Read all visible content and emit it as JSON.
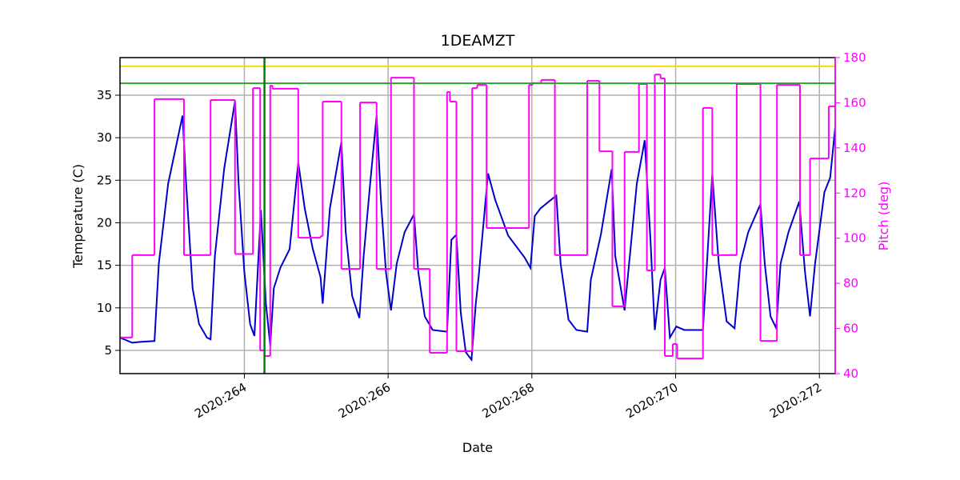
{
  "chart_data": {
    "type": "line",
    "title": "1DEAMZT",
    "x_label": "Date",
    "y_label": "Temperature (C)",
    "y2_label": "Pitch (deg)",
    "y2_color": "#ff00ff",
    "xlim": [
      262.27,
      272.22
    ],
    "xticks": [
      {
        "value": 264,
        "label": "2020:264"
      },
      {
        "value": 266,
        "label": "2020:266"
      },
      {
        "value": 268,
        "label": "2020:268"
      },
      {
        "value": 270,
        "label": "2020:270"
      },
      {
        "value": 272,
        "label": "2020:272"
      }
    ],
    "ylim": [
      2.27,
      39.42
    ],
    "yticks": [
      5,
      10,
      15,
      20,
      25,
      30,
      35
    ],
    "y2lim": [
      40,
      180
    ],
    "y2ticks": [
      40,
      60,
      80,
      100,
      120,
      140,
      160,
      180
    ],
    "grid": true,
    "hlines": [
      {
        "value": 38.4,
        "color": "#ffd700"
      },
      {
        "value": 36.4,
        "color": "#2ca02c"
      }
    ],
    "vlines": [
      {
        "value": 264.28,
        "color": "#008000"
      }
    ],
    "series": [
      {
        "color": "#0000cc",
        "x": [
          262.27,
          262.44,
          262.55,
          262.75,
          262.81,
          262.94,
          263.14,
          263.19,
          263.28,
          263.37,
          263.48,
          263.53,
          263.59,
          263.72,
          263.87,
          263.92,
          264.0,
          264.08,
          264.14,
          264.23,
          264.3,
          264.36,
          264.41,
          264.5,
          264.63,
          264.75,
          264.84,
          264.95,
          265.06,
          265.09,
          265.19,
          265.35,
          265.41,
          265.5,
          265.6,
          265.66,
          265.75,
          265.84,
          265.9,
          265.97,
          266.04,
          266.12,
          266.23,
          266.36,
          266.42,
          266.51,
          266.62,
          266.82,
          266.88,
          266.95,
          267.01,
          267.08,
          267.16,
          267.22,
          267.26,
          267.39,
          267.49,
          267.67,
          267.9,
          267.98,
          268.04,
          268.12,
          268.34,
          268.4,
          268.51,
          268.62,
          268.77,
          268.82,
          268.96,
          269.11,
          269.16,
          269.29,
          269.46,
          269.57,
          269.65,
          269.71,
          269.79,
          269.85,
          269.92,
          270.01,
          270.12,
          270.38,
          270.51,
          270.6,
          270.71,
          270.82,
          270.9,
          271.01,
          271.18,
          271.24,
          271.32,
          271.4,
          271.46,
          271.57,
          271.72,
          271.8,
          271.87,
          271.94,
          272.07,
          272.15,
          272.22
        ],
        "values": [
          6.5,
          5.9,
          6.0,
          6.1,
          15.2,
          24.6,
          32.6,
          24.6,
          12.3,
          8.1,
          6.5,
          6.3,
          16.1,
          26.4,
          34.3,
          24.6,
          14.2,
          8.1,
          6.7,
          21.5,
          10.5,
          5.6,
          12.3,
          14.7,
          16.9,
          27.1,
          21.7,
          17.0,
          13.6,
          10.5,
          21.7,
          29.5,
          18.9,
          11.4,
          8.8,
          16.1,
          24.6,
          32.6,
          22.7,
          14.2,
          9.7,
          15.2,
          18.9,
          21.0,
          14.2,
          9.0,
          7.4,
          7.2,
          18.0,
          18.6,
          9.5,
          4.8,
          3.9,
          10.5,
          13.7,
          25.8,
          22.7,
          18.5,
          15.9,
          14.7,
          20.8,
          21.7,
          23.2,
          15.2,
          8.6,
          7.4,
          7.2,
          13.3,
          18.6,
          26.3,
          16.1,
          9.7,
          24.6,
          29.7,
          18.0,
          7.4,
          13.3,
          14.7,
          6.5,
          7.8,
          7.4,
          7.4,
          25.7,
          15.2,
          8.4,
          7.6,
          15.2,
          18.9,
          22.2,
          15.2,
          9.0,
          7.6,
          15.2,
          18.9,
          22.5,
          14.2,
          9.0,
          15.2,
          23.6,
          25.3,
          31.2
        ]
      },
      {
        "color": "#ff00ff",
        "axis": "y2",
        "step": "post",
        "x": [
          262.27,
          262.44,
          262.75,
          263.16,
          263.53,
          263.87,
          264.12,
          264.22,
          264.28,
          264.36,
          264.39,
          264.75,
          265.06,
          265.09,
          265.35,
          265.61,
          265.84,
          266.04,
          266.36,
          266.58,
          266.82,
          266.86,
          266.95,
          267.17,
          267.24,
          267.37,
          267.96,
          268.01,
          268.13,
          268.32,
          268.77,
          268.94,
          269.12,
          269.29,
          269.49,
          269.6,
          269.71,
          269.79,
          269.85,
          269.96,
          270.02,
          270.38,
          270.51,
          270.85,
          271.18,
          271.41,
          271.73,
          271.87,
          272.13
        ],
        "values": [
          56,
          92.5,
          161.6,
          92.5,
          161.2,
          93,
          166.5,
          50.3,
          47.8,
          167.6,
          166.2,
          100.2,
          100.9,
          160.5,
          86.4,
          160.1,
          86.4,
          171.1,
          86.4,
          49.2,
          164.8,
          160.5,
          49.9,
          166.5,
          167.9,
          104.5,
          167.9,
          168.7,
          170.1,
          92.5,
          169.7,
          138.5,
          69.8,
          138.2,
          168.3,
          85.7,
          172.5,
          170.8,
          47.8,
          53.1,
          46.7,
          157.7,
          92.5,
          168.3,
          54.5,
          167.9,
          92.5,
          135.3,
          158.4
        ]
      }
    ]
  }
}
